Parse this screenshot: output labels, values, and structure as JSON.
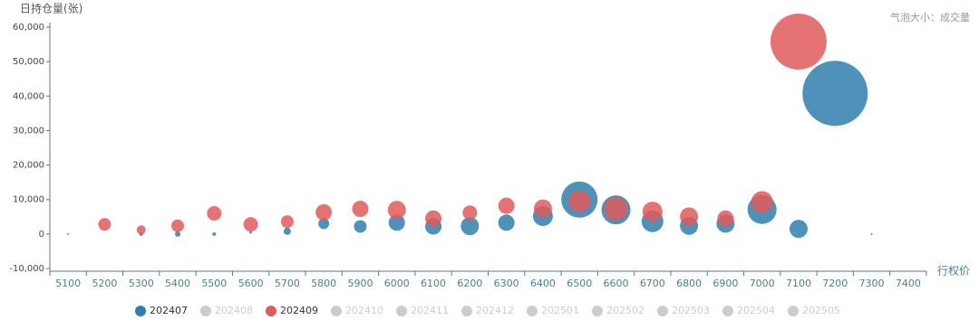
{
  "chart_data": {
    "type": "bubble",
    "y_axis_label": "日持仓量(张)",
    "x_axis_label": "行权价",
    "annotation": "气泡大小：成交量",
    "categories": [
      "5100",
      "5200",
      "5300",
      "5400",
      "5500",
      "5600",
      "5700",
      "5800",
      "5900",
      "6000",
      "6100",
      "6200",
      "6300",
      "6400",
      "6500",
      "6600",
      "6700",
      "6800",
      "6900",
      "7000",
      "7100",
      "7200",
      "7300",
      "7400"
    ],
    "ylim": [
      -10000,
      60000
    ],
    "yticks": [
      {
        "value": -10000,
        "label": "-10,000"
      },
      0,
      {
        "value": 10000,
        "label": "10,000"
      },
      {
        "value": 20000,
        "label": "20,000"
      },
      {
        "value": 30000,
        "label": "30,000"
      },
      {
        "value": 40000,
        "label": "40,000"
      },
      {
        "value": 50000,
        "label": "50,000"
      },
      {
        "value": 60000,
        "label": "60,000"
      }
    ],
    "inactive_color": "#cccccc",
    "series": [
      {
        "name": "202407",
        "color": "#2f7fad",
        "selected": true,
        "values": [
          0,
          null,
          0,
          0,
          0,
          500,
          800,
          3000,
          2200,
          3300,
          2200,
          2300,
          3300,
          5200,
          10000,
          7000,
          3700,
          2400,
          3000,
          7100,
          1500,
          40800,
          0,
          null
        ],
        "sizes": [
          1,
          null,
          4,
          9,
          4,
          2,
          16,
          36,
          49,
          81,
          81,
          100,
          81,
          121,
          400,
          256,
          144,
          100,
          100,
          256,
          100,
          1296,
          1,
          null
        ]
      },
      {
        "name": "202408",
        "selected": false
      },
      {
        "name": "202409",
        "color": "#e05a5a",
        "selected": true,
        "values": [
          null,
          2800,
          1200,
          2400,
          6000,
          2800,
          3600,
          6300,
          7300,
          7000,
          4500,
          6200,
          8200,
          7400,
          9500,
          7300,
          6500,
          5100,
          4500,
          9300,
          55800,
          null,
          null,
          null
        ],
        "sizes": [
          null,
          49,
          25,
          49,
          64,
          64,
          49,
          81,
          81,
          100,
          81,
          64,
          81,
          100,
          144,
          169,
          121,
          100,
          81,
          144,
          961,
          null,
          null,
          null
        ]
      },
      {
        "name": "202410",
        "selected": false
      },
      {
        "name": "202411",
        "selected": false
      },
      {
        "name": "202412",
        "selected": false
      },
      {
        "name": "202501",
        "selected": false
      },
      {
        "name": "202502",
        "selected": false
      },
      {
        "name": "202503",
        "selected": false
      },
      {
        "name": "202504",
        "selected": false
      },
      {
        "name": "202505",
        "selected": false
      }
    ]
  }
}
